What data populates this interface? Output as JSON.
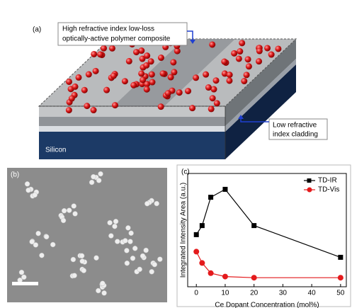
{
  "panel_a": {
    "label": "(a)",
    "core_label": [
      "High refractive index low-loss",
      "optically-active polymer composite"
    ],
    "cladding_label": [
      "Low refractive",
      "index cladding"
    ],
    "substrate_label": "Silicon"
  },
  "panel_b": {
    "label": "(b)"
  },
  "chart_data": {
    "type": "line",
    "panel_label": "(c)",
    "x_label": "Ce Dopant Concentration (mol%)",
    "y_label": "Integrated Intensity Area (a.u.)",
    "x": [
      0,
      2,
      5,
      10,
      20,
      50
    ],
    "series": [
      {
        "name": "TD-IR",
        "color": "#000000",
        "marker": "square",
        "values": [
          4.6,
          5.4,
          7.9,
          8.6,
          5.4,
          2.6
        ]
      },
      {
        "name": "TD-Vis",
        "color": "#e41a1c",
        "marker": "circle",
        "values": [
          3.1,
          2.1,
          1.2,
          0.9,
          0.8,
          0.8
        ]
      }
    ],
    "xlim": [
      -3,
      52
    ],
    "xticks": [
      0,
      10,
      20,
      30,
      40,
      50
    ],
    "ylim": [
      0,
      10
    ],
    "legend": "upper right"
  }
}
